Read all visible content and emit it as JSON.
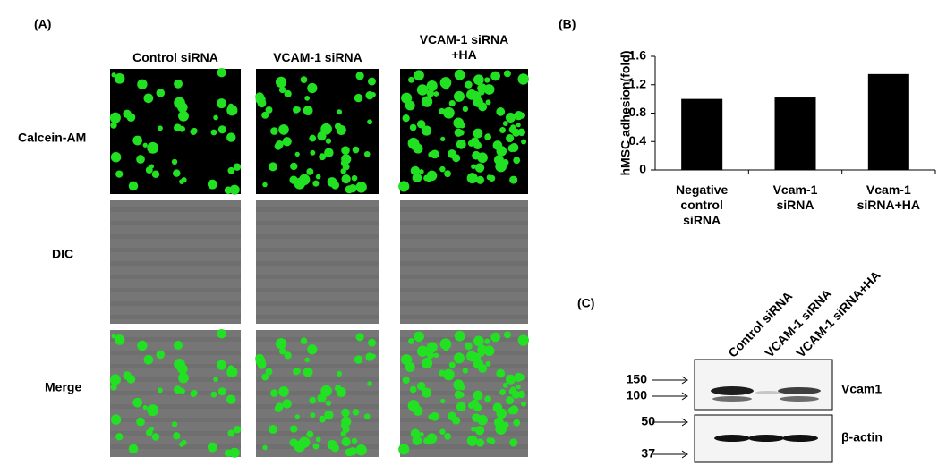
{
  "panel_a": {
    "label": "(A)",
    "columns": [
      "Control siRNA",
      "VCAM-1 siRNA",
      "VCAM-1 siRNA +HA"
    ],
    "rows": [
      "Calcein-AM",
      "DIC",
      "Merge"
    ]
  },
  "chart_data": {
    "type": "bar",
    "panel_label": "(B)",
    "y_label": "hMSC adhesion(fold)",
    "categories": [
      "Negative control siRNA",
      "Vcam-1 siRNA",
      "Vcam-1 siRNA+HA"
    ],
    "values": [
      1.0,
      1.02,
      1.35
    ],
    "color": "#000000",
    "ylim": [
      0,
      1.6
    ],
    "yticks": [
      0,
      0.4,
      0.8,
      1.2,
      1.6
    ]
  },
  "panel_c": {
    "label": "(C)",
    "lanes": [
      "Control siRNA",
      "VCAM-1 siRNA",
      "VCAM-1 siRNA+HA"
    ],
    "markers": [
      "150",
      "100",
      "50",
      "37"
    ],
    "bands": [
      "Vcam1",
      "β-actin"
    ]
  }
}
